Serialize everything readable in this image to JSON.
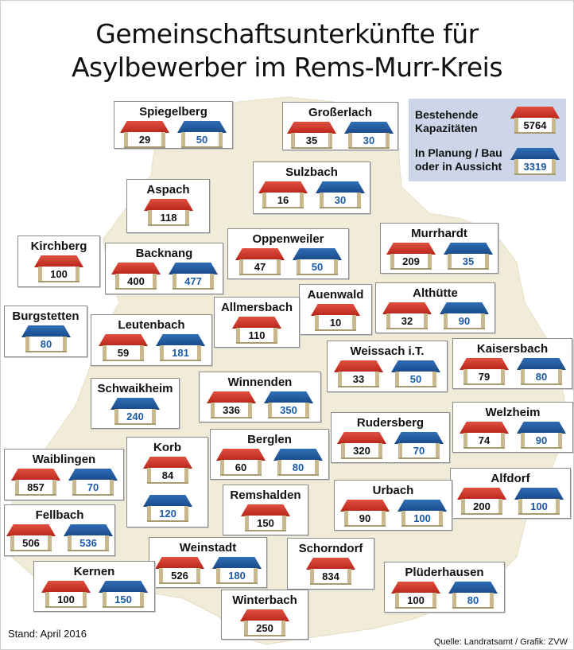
{
  "title_line1": "Gemeinschaftsunterkünfte für",
  "title_line2": "Asylbewerber im Rems-Murr-Kreis",
  "legend": {
    "existing_label_1": "Bestehende",
    "existing_label_2": "Kapazitäten",
    "existing_value": "5764",
    "planned_label_1": "In Planung / Bau",
    "planned_label_2": "oder in Aussicht",
    "planned_value": "3319"
  },
  "colors": {
    "existing": "#c0332a",
    "planned": "#1f5aa0",
    "map_fill": "#f1ecd8"
  },
  "municipalities": [
    {
      "name": "Spiegelberg",
      "existing": "29",
      "planned": "50"
    },
    {
      "name": "Großerlach",
      "existing": "35",
      "planned": "30"
    },
    {
      "name": "Sulzbach",
      "existing": "16",
      "planned": "30"
    },
    {
      "name": "Aspach",
      "existing": "118",
      "planned": ""
    },
    {
      "name": "Kirchberg",
      "existing": "100",
      "planned": ""
    },
    {
      "name": "Backnang",
      "existing": "400",
      "planned": "477"
    },
    {
      "name": "Oppenweiler",
      "existing": "47",
      "planned": "50"
    },
    {
      "name": "Murrhardt",
      "existing": "209",
      "planned": "35"
    },
    {
      "name": "Auenwald",
      "existing": "10",
      "planned": ""
    },
    {
      "name": "Allmersbach",
      "existing": "110",
      "planned": ""
    },
    {
      "name": "Althütte",
      "existing": "32",
      "planned": "90"
    },
    {
      "name": "Burgstetten",
      "existing": "",
      "planned": "80"
    },
    {
      "name": "Leutenbach",
      "existing": "59",
      "planned": "181"
    },
    {
      "name": "Weissach i.T.",
      "existing": "33",
      "planned": "50"
    },
    {
      "name": "Kaisersbach",
      "existing": "79",
      "planned": "80"
    },
    {
      "name": "Schwaikheim",
      "existing": "",
      "planned": "240"
    },
    {
      "name": "Winnenden",
      "existing": "336",
      "planned": "350"
    },
    {
      "name": "Rudersberg",
      "existing": "320",
      "planned": "70"
    },
    {
      "name": "Welzheim",
      "existing": "74",
      "planned": "90"
    },
    {
      "name": "Korb",
      "existing": "84",
      "planned": "120"
    },
    {
      "name": "Berglen",
      "existing": "60",
      "planned": "80"
    },
    {
      "name": "Waiblingen",
      "existing": "857",
      "planned": "70"
    },
    {
      "name": "Alfdorf",
      "existing": "200",
      "planned": "100"
    },
    {
      "name": "Urbach",
      "existing": "90",
      "planned": "100"
    },
    {
      "name": "Remshalden",
      "existing": "150",
      "planned": ""
    },
    {
      "name": "Fellbach",
      "existing": "506",
      "planned": "536"
    },
    {
      "name": "Weinstadt",
      "existing": "526",
      "planned": "180"
    },
    {
      "name": "Schorndorf",
      "existing": "834",
      "planned": ""
    },
    {
      "name": "Kernen",
      "existing": "100",
      "planned": "150"
    },
    {
      "name": "Plüderhausen",
      "existing": "100",
      "planned": "80"
    },
    {
      "name": "Winterbach",
      "existing": "250",
      "planned": ""
    }
  ],
  "footer": {
    "stand": "Stand: April 2016",
    "source": "Quelle: Landratsamt / Grafik: ZVW"
  }
}
